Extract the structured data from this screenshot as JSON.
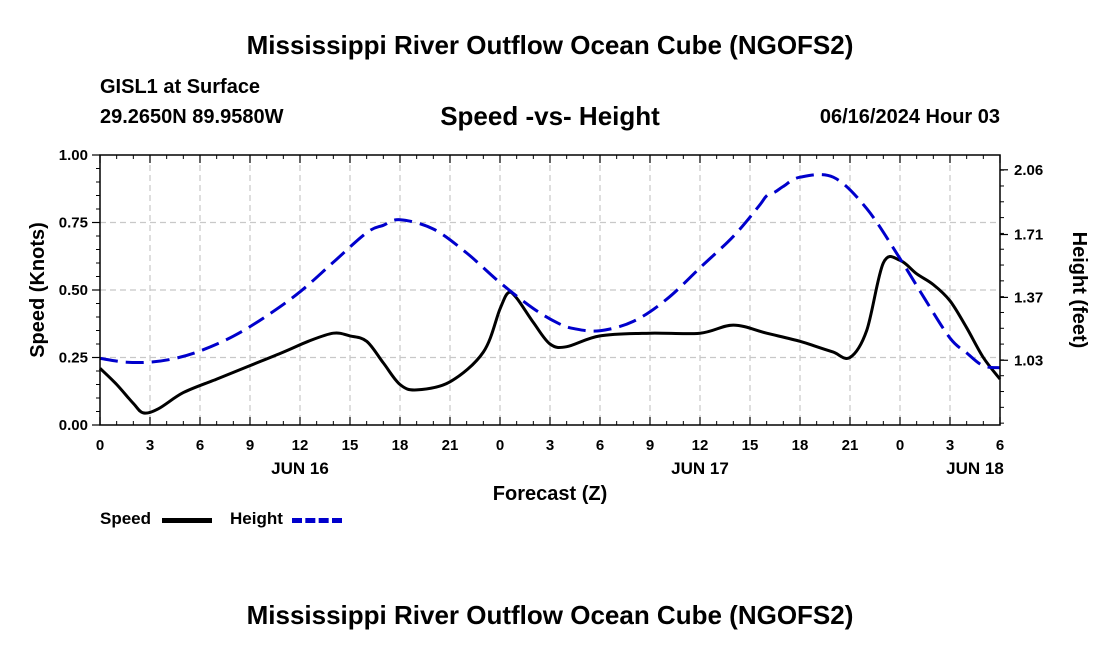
{
  "header": {
    "title": "Mississippi River Outflow Ocean Cube (NGOFS2)",
    "station": "GISL1 at Surface",
    "coords": "29.2650N  89.9580W",
    "subtitle": "Speed -vs- Height",
    "datetime": "06/16/2024 Hour 03"
  },
  "footer": {
    "title": "Mississippi River Outflow Ocean Cube (NGOFS2)"
  },
  "legend": {
    "speed_label": "Speed",
    "height_label": "Height"
  },
  "colors": {
    "speed": "#000000",
    "height": "#0000cc",
    "grid": "#c8c8c8"
  },
  "chart_data": {
    "type": "line",
    "title": "Speed -vs- Height",
    "xlabel": "Forecast (Z)",
    "ylabel": "Speed (Knots)",
    "y2label": "Height (feet)",
    "xlim": [
      0,
      54
    ],
    "ylim": [
      0,
      1
    ],
    "y2lim": [
      0.68,
      2.14
    ],
    "x_tick_values": [
      0,
      3,
      6,
      9,
      12,
      15,
      18,
      21,
      24,
      27,
      30,
      33,
      36,
      39,
      42,
      45,
      48,
      51,
      54
    ],
    "x_tick_labels": [
      "0",
      "3",
      "6",
      "9",
      "12",
      "15",
      "18",
      "21",
      "0",
      "3",
      "6",
      "9",
      "12",
      "15",
      "18",
      "21",
      "0",
      "3",
      "6"
    ],
    "date_labels": [
      {
        "x": 12,
        "label": "JUN 16"
      },
      {
        "x": 36,
        "label": "JUN 17"
      },
      {
        "x": 52.5,
        "label": "JUN 18"
      }
    ],
    "y_ticks": [
      0.0,
      0.25,
      0.5,
      0.75,
      1.0
    ],
    "y_tick_labels": [
      "0.00",
      "0.25",
      "0.50",
      "0.75",
      "1.00"
    ],
    "y2_ticks": [
      1.03,
      1.37,
      1.71,
      2.06
    ],
    "y2_tick_labels": [
      "1.03",
      "1.37",
      "1.71",
      "2.06"
    ],
    "series": [
      {
        "name": "Speed",
        "axis": "left",
        "style": "solid",
        "x": [
          0,
          1,
          2,
          2.6,
          3.5,
          5,
          7,
          9,
          11,
          12.5,
          14,
          15,
          16,
          17,
          18,
          19,
          21,
          23,
          24,
          24.5,
          25,
          26,
          27,
          28,
          30,
          33,
          36,
          38,
          40,
          42,
          43,
          44,
          45,
          46,
          47,
          48,
          49,
          50,
          51,
          52,
          53,
          54
        ],
        "values": [
          0.21,
          0.15,
          0.08,
          0.045,
          0.06,
          0.12,
          0.17,
          0.22,
          0.27,
          0.31,
          0.34,
          0.33,
          0.31,
          0.23,
          0.15,
          0.13,
          0.16,
          0.27,
          0.43,
          0.49,
          0.47,
          0.38,
          0.3,
          0.29,
          0.33,
          0.34,
          0.34,
          0.37,
          0.34,
          0.31,
          0.29,
          0.27,
          0.25,
          0.35,
          0.6,
          0.61,
          0.56,
          0.52,
          0.46,
          0.36,
          0.25,
          0.17
        ]
      },
      {
        "name": "Height",
        "axis": "right",
        "style": "dashed",
        "x": [
          0,
          1.5,
          3,
          4.5,
          6,
          8,
          10,
          12,
          14,
          16,
          17,
          18,
          20,
          22,
          24,
          26,
          27.5,
          28.5,
          30,
          32,
          34,
          36,
          38,
          39.5,
          40,
          40.5,
          41,
          42,
          44,
          46,
          48,
          49.5,
          51,
          52,
          53,
          54
        ],
        "values": [
          1.04,
          1.02,
          1.02,
          1.04,
          1.08,
          1.16,
          1.27,
          1.4,
          1.56,
          1.72,
          1.76,
          1.79,
          1.74,
          1.61,
          1.45,
          1.31,
          1.23,
          1.2,
          1.19,
          1.24,
          1.36,
          1.53,
          1.7,
          1.86,
          1.92,
          1.94,
          1.97,
          2.02,
          2.02,
          1.85,
          1.58,
          1.36,
          1.15,
          1.07,
          1.0,
          0.99
        ]
      }
    ]
  }
}
